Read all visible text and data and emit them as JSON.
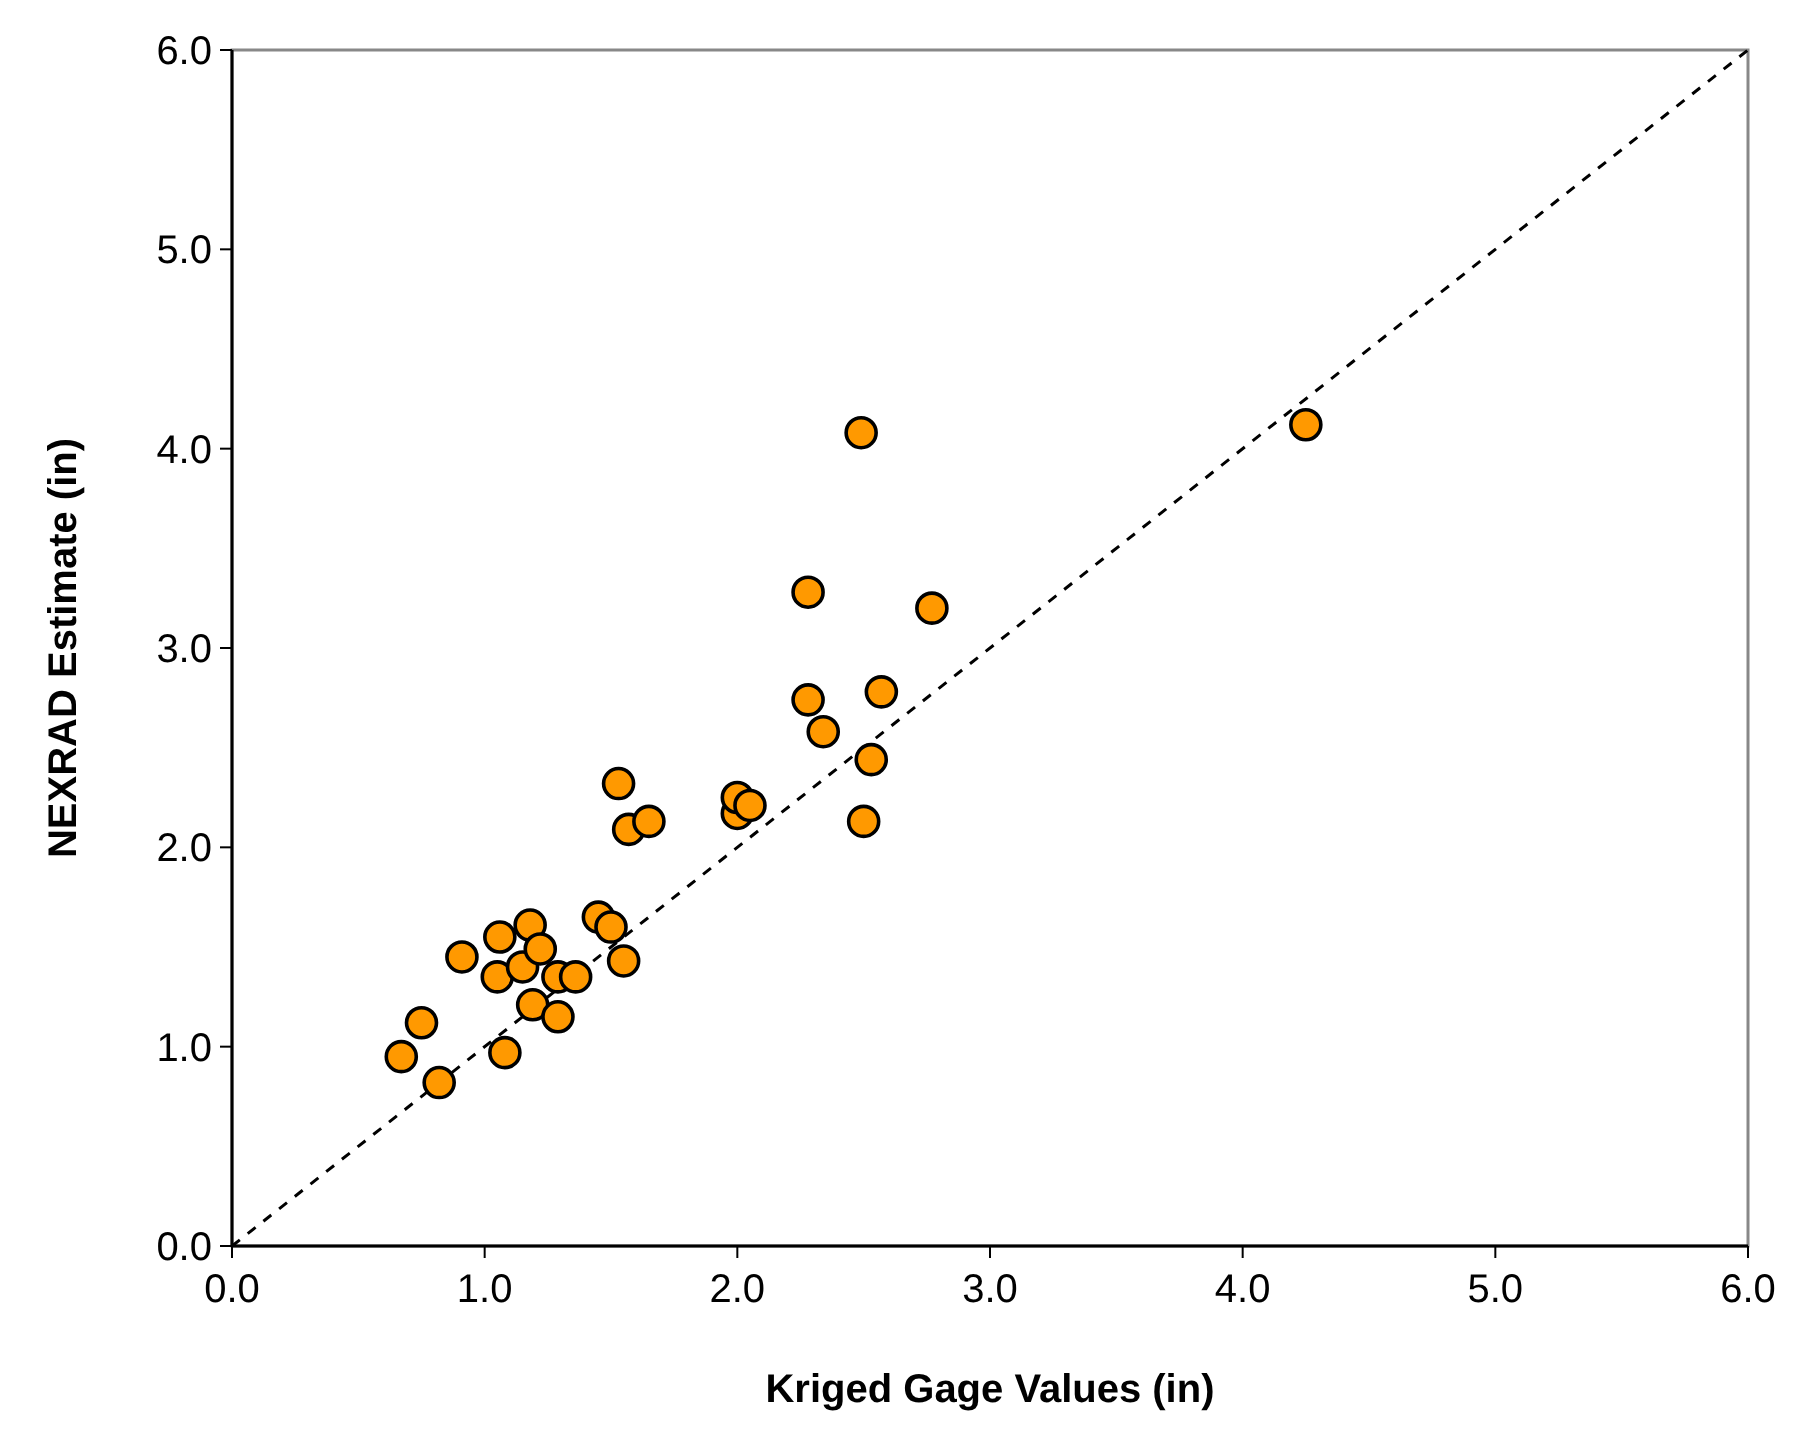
{
  "chart_data": {
    "type": "scatter",
    "xlabel": "Kriged Gage Values (in)",
    "ylabel": "NEXRAD Estimate (in)",
    "xlim": [
      0,
      6
    ],
    "ylim": [
      0,
      6
    ],
    "xticks": [
      {
        "value": 0,
        "label": "0.0"
      },
      {
        "value": 1,
        "label": "1.0"
      },
      {
        "value": 2,
        "label": "2.0"
      },
      {
        "value": 3,
        "label": "3.0"
      },
      {
        "value": 4,
        "label": "4.0"
      },
      {
        "value": 5,
        "label": "5.0"
      },
      {
        "value": 6,
        "label": "6.0"
      }
    ],
    "yticks": [
      {
        "value": 0,
        "label": "0.0"
      },
      {
        "value": 1,
        "label": "1.0"
      },
      {
        "value": 2,
        "label": "2.0"
      },
      {
        "value": 3,
        "label": "3.0"
      },
      {
        "value": 4,
        "label": "4.0"
      },
      {
        "value": 5,
        "label": "5.0"
      },
      {
        "value": 6,
        "label": "6.0"
      }
    ],
    "grid": false,
    "series": [
      {
        "color": "#ff9900",
        "marker": "circle",
        "x": [
          0.67,
          0.75,
          0.82,
          0.91,
          1.05,
          1.06,
          1.08,
          1.15,
          1.18,
          1.19,
          1.22,
          1.29,
          1.29,
          1.36,
          1.45,
          1.5,
          1.53,
          1.55,
          1.57,
          1.65,
          2.0,
          2.0,
          2.05,
          2.28,
          2.28,
          2.34,
          2.49,
          2.5,
          2.53,
          2.57,
          2.77,
          4.25
        ],
        "values": [
          0.95,
          1.12,
          0.82,
          1.45,
          1.35,
          1.55,
          0.97,
          1.4,
          1.61,
          1.21,
          1.49,
          1.35,
          1.15,
          1.35,
          1.65,
          1.6,
          2.32,
          1.43,
          2.09,
          2.13,
          2.17,
          2.25,
          2.21,
          3.28,
          2.74,
          2.58,
          4.08,
          2.13,
          2.44,
          2.78,
          3.2,
          4.12
        ]
      },
      {
        "type": "line",
        "color": "#000000",
        "line_style": "dashed",
        "marker": "none",
        "x": [
          0,
          6
        ],
        "values": [
          0,
          6
        ]
      }
    ]
  }
}
